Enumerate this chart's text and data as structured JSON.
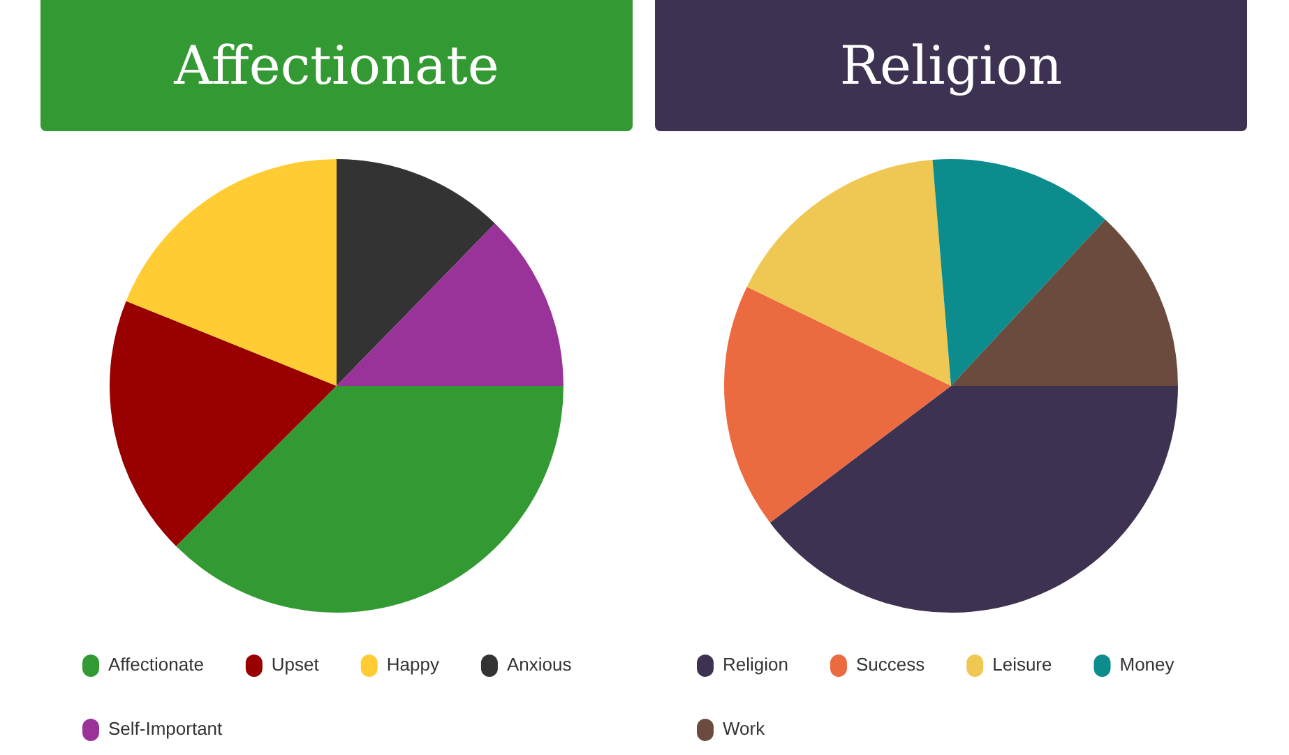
{
  "chart_data": [
    {
      "type": "pie",
      "title": "Affectionate",
      "categories": [
        "Affectionate",
        "Upset",
        "Happy",
        "Anxious",
        "Self-Important"
      ],
      "values": [
        37.5,
        18.6,
        18.9,
        12.3,
        12.7
      ],
      "colors": [
        "#339933",
        "#990000",
        "#ffcc33",
        "#333333",
        "#993399"
      ],
      "legend": "bottom"
    },
    {
      "type": "pie",
      "title": "Religion",
      "categories": [
        "Religion",
        "Success",
        "Leisure",
        "Money",
        "Work"
      ],
      "values": [
        39.7,
        17.5,
        16.5,
        13.2,
        13.1
      ],
      "colors": [
        "#3d3251",
        "#ec6a40",
        "#eec853",
        "#0c8c8c",
        "#6b4b3e"
      ],
      "legend": "bottom"
    }
  ]
}
